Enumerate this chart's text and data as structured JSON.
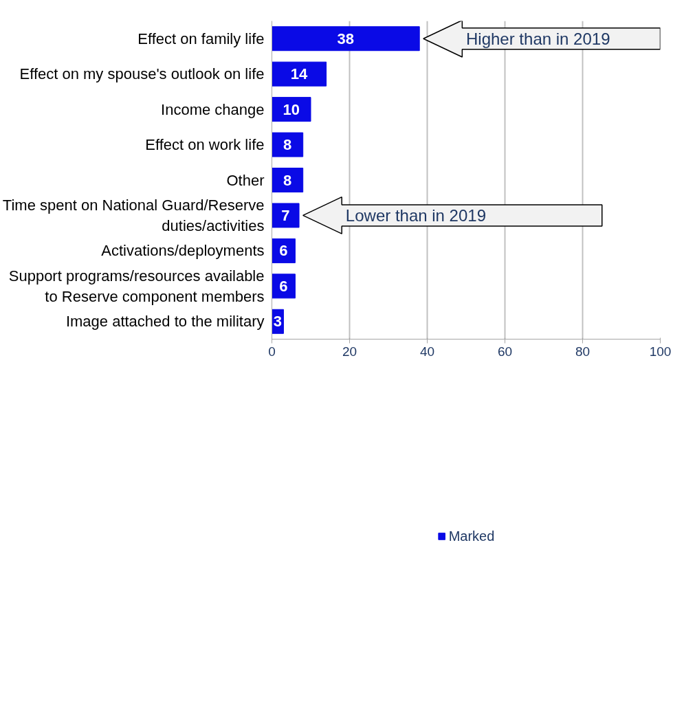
{
  "chart_data": {
    "type": "bar",
    "orientation": "horizontal",
    "categories": [
      "Effect on family life",
      "Effect on my spouse's outlook on life",
      "Income change",
      "Effect on work life",
      "Other",
      "Time spent on National Guard/Reserve duties/activities",
      "Activations/deployments",
      "Support programs/resources available to Reserve component members",
      "Image attached to the military"
    ],
    "series": [
      {
        "name": "Marked",
        "color": "#0a0ae6",
        "values": [
          38,
          14,
          10,
          8,
          8,
          7,
          6,
          6,
          3
        ]
      }
    ],
    "data_labels": true,
    "xlim": [
      0,
      100
    ],
    "xticks": [
      0,
      20,
      40,
      60,
      80,
      100
    ],
    "grid": "x",
    "legend": "bottom",
    "annotations": [
      {
        "text": "Higher than in 2019",
        "x": 38,
        "y": "Effect on family life"
      },
      {
        "text": "Lower than in 2019",
        "x": 7,
        "y": "Time spent on National Guard/Reserve duties/activities"
      }
    ]
  }
}
